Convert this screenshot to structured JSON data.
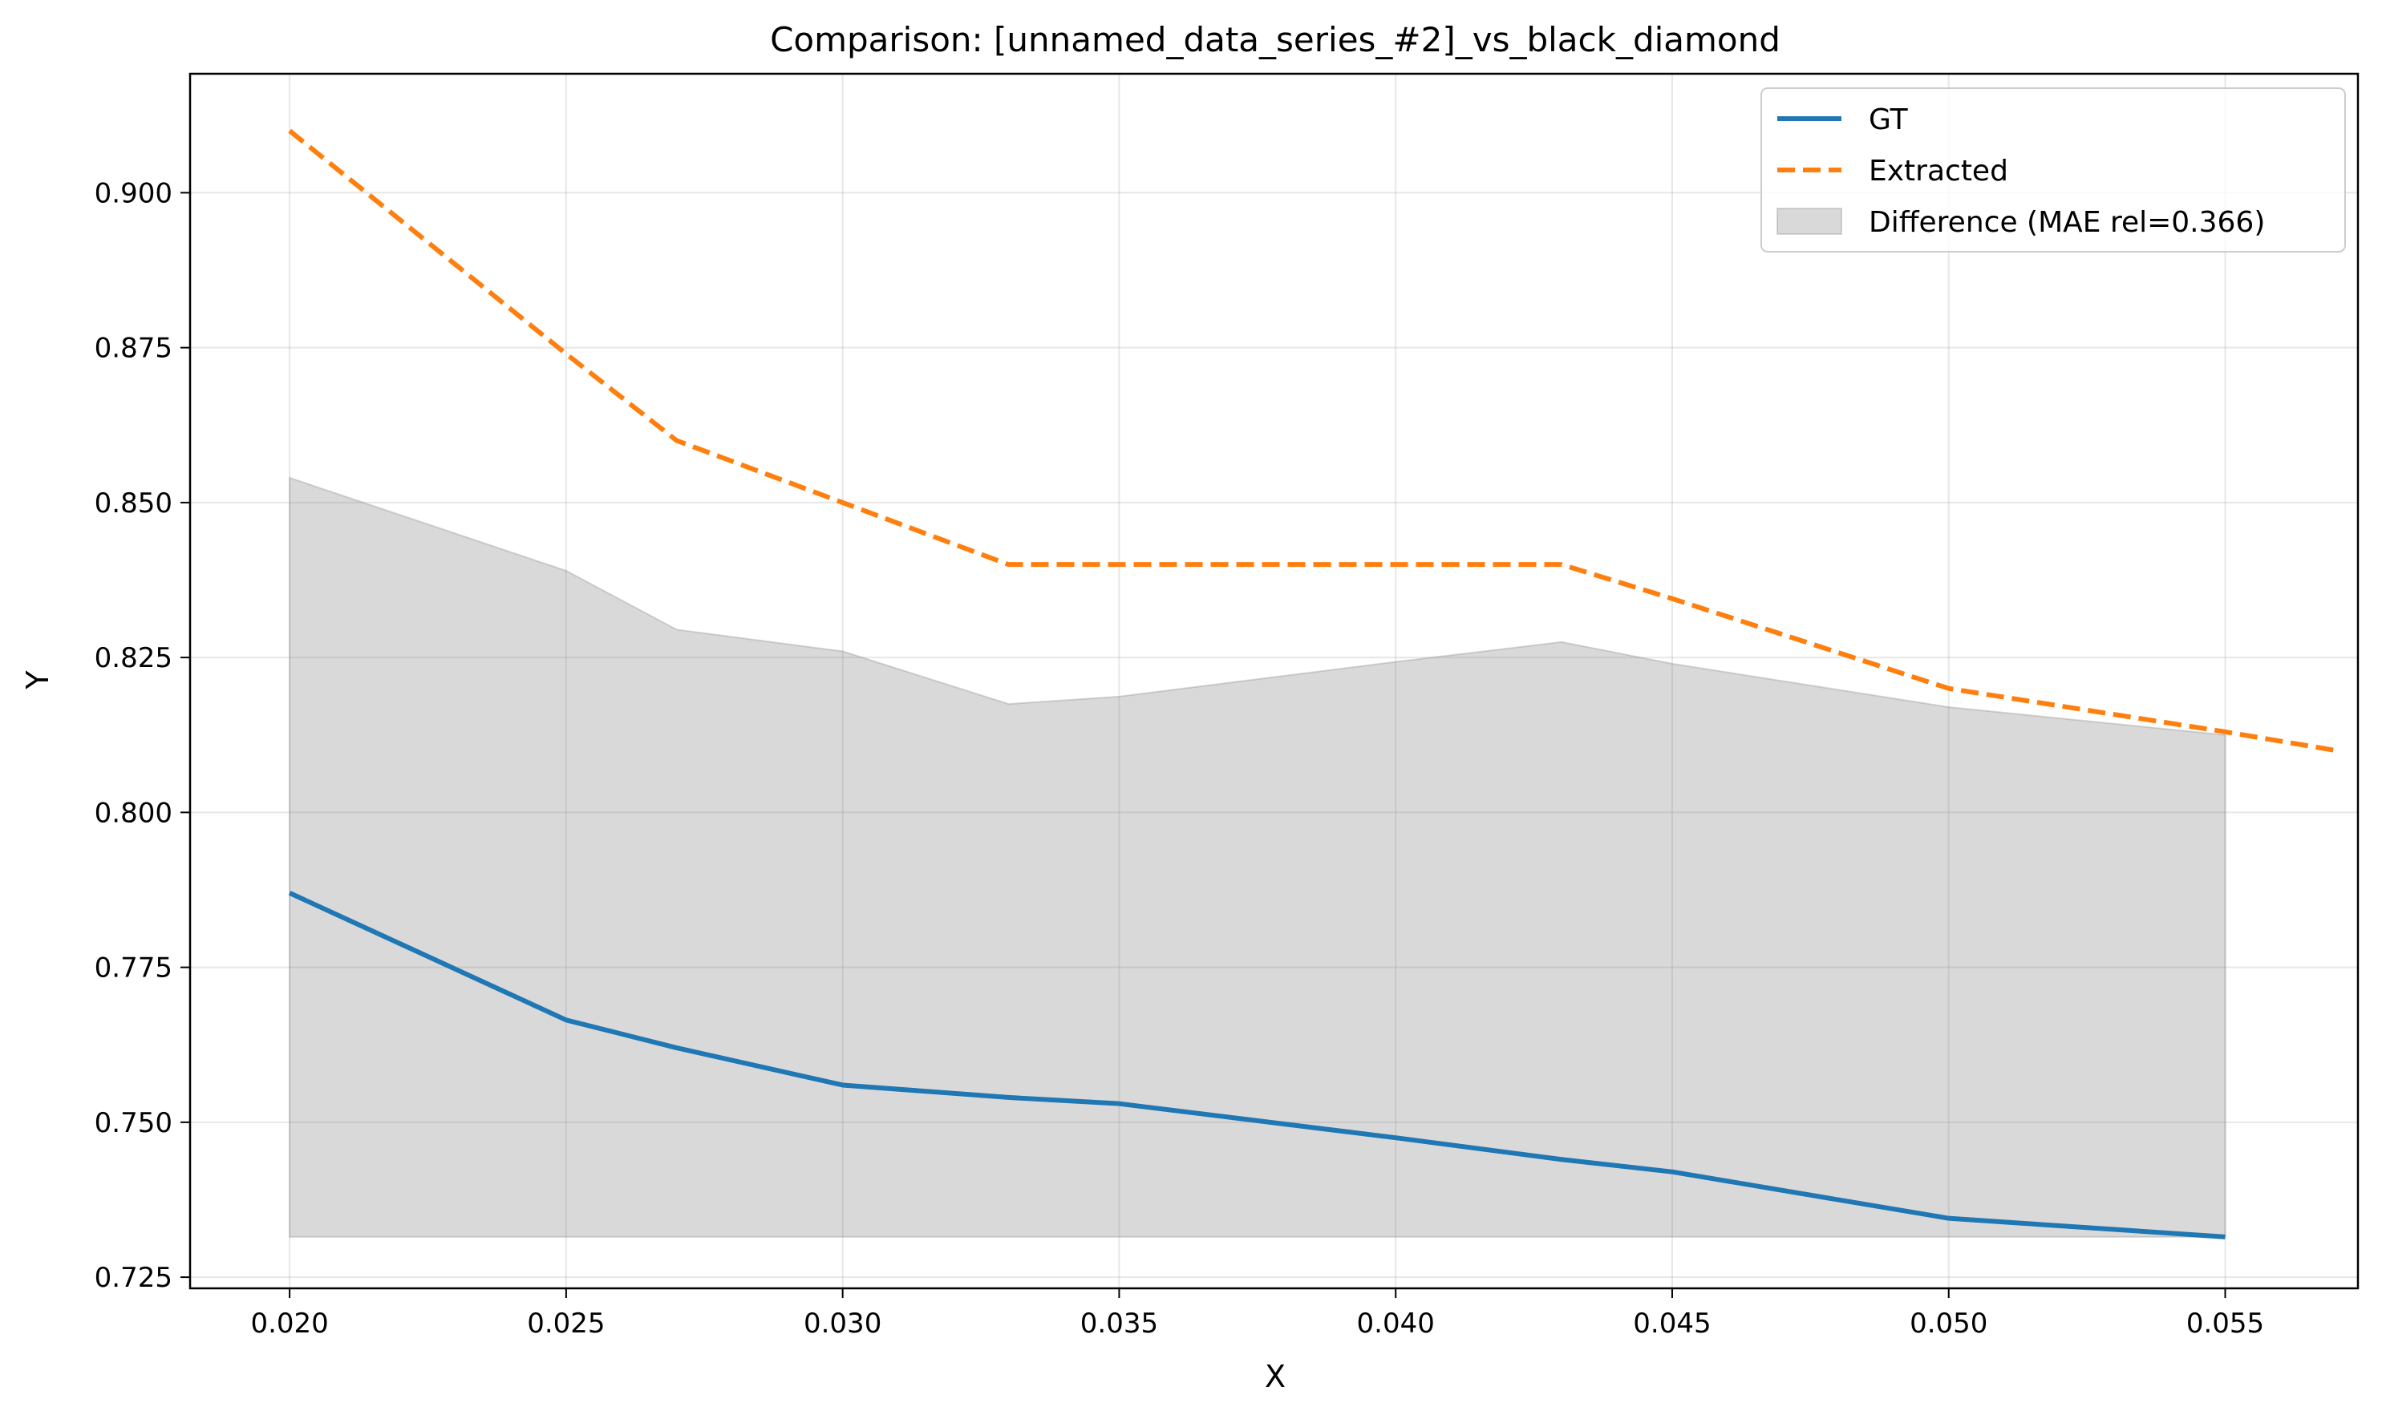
{
  "chart_data": {
    "type": "line",
    "title": "Comparison: [unnamed_data_series_#2]_vs_black_diamond",
    "xlabel": "X",
    "ylabel": "Y",
    "xlim": [
      0.0182,
      0.0574
    ],
    "ylim": [
      0.7232,
      0.9192
    ],
    "xticks": [
      0.02,
      0.025,
      0.03,
      0.035,
      0.04,
      0.045,
      0.05,
      0.055
    ],
    "xtick_labels": [
      "0.020",
      "0.025",
      "0.030",
      "0.035",
      "0.040",
      "0.045",
      "0.050",
      "0.055"
    ],
    "yticks": [
      0.725,
      0.75,
      0.775,
      0.8,
      0.825,
      0.85,
      0.875,
      0.9
    ],
    "ytick_labels": [
      "0.725",
      "0.750",
      "0.775",
      "0.800",
      "0.825",
      "0.850",
      "0.875",
      "0.900"
    ],
    "grid": true,
    "legend_position": "top-right",
    "series": [
      {
        "name": "GT",
        "color": "#1f77b4",
        "style": "solid",
        "x": [
          0.02,
          0.025,
          0.027,
          0.03,
          0.033,
          0.035,
          0.04,
          0.043,
          0.045,
          0.05,
          0.055
        ],
        "y": [
          0.787,
          0.7665,
          0.762,
          0.756,
          0.754,
          0.753,
          0.7475,
          0.744,
          0.742,
          0.7345,
          0.7315
        ]
      },
      {
        "name": "Extracted",
        "color": "#ff7f0e",
        "style": "dashed",
        "x": [
          0.02,
          0.025,
          0.027,
          0.03,
          0.033,
          0.035,
          0.04,
          0.043,
          0.045,
          0.05,
          0.055,
          0.057
        ],
        "y": [
          0.91,
          0.874,
          0.86,
          0.85,
          0.84,
          0.84,
          0.84,
          0.84,
          0.8345,
          0.82,
          0.813,
          0.81
        ]
      }
    ],
    "difference_band": {
      "name": "Difference (MAE rel=0.366)",
      "color": "#808080",
      "x": [
        0.02,
        0.025,
        0.027,
        0.03,
        0.033,
        0.035,
        0.04,
        0.043,
        0.045,
        0.05,
        0.055
      ],
      "upper": [
        0.854,
        0.839,
        0.8295,
        0.826,
        0.8175,
        0.8187,
        0.8243,
        0.8275,
        0.824,
        0.817,
        0.8125
      ],
      "lower": [
        0.7315,
        0.7315,
        0.7315,
        0.7315,
        0.7315,
        0.7315,
        0.7315,
        0.7315,
        0.7315,
        0.7315,
        0.7315
      ]
    }
  }
}
